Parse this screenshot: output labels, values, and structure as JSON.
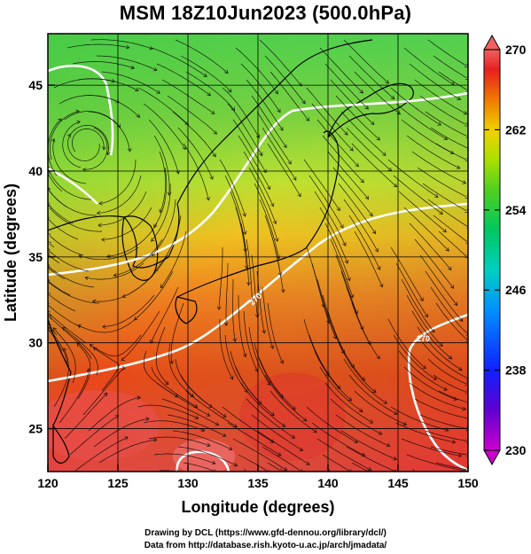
{
  "title": "MSM 18Z10Jun2023 (500.0hPa)",
  "map": {
    "xlabel": "Longitude (degrees)",
    "ylabel": "Latitude  (degrees)",
    "lon_range": [
      120,
      150
    ],
    "lat_range": [
      22.5,
      48
    ],
    "lon_ticks": [
      "120",
      "125",
      "130",
      "135",
      "140",
      "145",
      "150"
    ],
    "lat_ticks": [
      "25",
      "30",
      "35",
      "40",
      "45"
    ],
    "field": "temperature",
    "contour_labels": [
      "270",
      "270",
      "258",
      "258"
    ]
  },
  "colorbar": {
    "min": 230,
    "max": 270,
    "tick_labels": [
      "270",
      "262",
      "254",
      "246",
      "238",
      "230"
    ],
    "colors": [
      "#cc00cc",
      "#4000d0",
      "#0040ff",
      "#00a0ff",
      "#00d0c0",
      "#00c060",
      "#30d020",
      "#a0e000",
      "#e0e000",
      "#f0a000",
      "#f05000",
      "#e82020",
      "#f06060"
    ]
  },
  "credits": [
    "Drawing by DCL (https://www.gfd-dennou.org/library/dcl/)",
    "Data from http://database.rish.kyoto-u.ac.jp/arch/jmadata/"
  ]
}
